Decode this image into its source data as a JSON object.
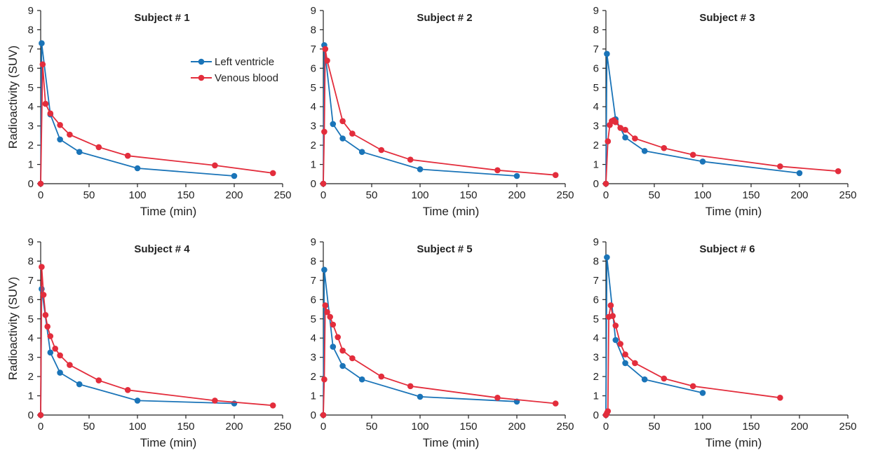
{
  "colors": {
    "left_ventricle": "#1a74b8",
    "venous_blood": "#e32d3c",
    "axis": "#222222"
  },
  "legend": {
    "left_ventricle": "Left ventricle",
    "venous_blood": "Venous blood"
  },
  "chart_data": [
    {
      "type": "line",
      "title": "Subject # 1",
      "xlabel": "Time (min)",
      "ylabel": "Radioactivity (SUV)",
      "xlim": [
        0,
        250
      ],
      "ylim": [
        0,
        9
      ],
      "xticks": [
        "0",
        "50",
        "100",
        "150",
        "200",
        "250"
      ],
      "yticks": [
        "0",
        "1",
        "2",
        "3",
        "4",
        "5",
        "6",
        "7",
        "8",
        "9"
      ],
      "grid": false,
      "legend_position": "top-right",
      "series": [
        {
          "name": "Left ventricle",
          "points": [
            [
              0,
              0
            ],
            [
              1,
              7.3
            ],
            [
              10,
              3.6
            ],
            [
              20,
              2.3
            ],
            [
              40,
              1.65
            ],
            [
              100,
              0.8
            ],
            [
              200,
              0.4
            ]
          ]
        },
        {
          "name": "Venous blood",
          "points": [
            [
              0,
              0
            ],
            [
              2,
              6.2
            ],
            [
              5,
              4.15
            ],
            [
              10,
              3.65
            ],
            [
              20,
              3.05
            ],
            [
              30,
              2.55
            ],
            [
              60,
              1.9
            ],
            [
              90,
              1.45
            ],
            [
              180,
              0.95
            ],
            [
              240,
              0.55
            ]
          ]
        }
      ]
    },
    {
      "type": "line",
      "title": "Subject # 2",
      "xlabel": "Time (min)",
      "ylabel": "",
      "xlim": [
        0,
        250
      ],
      "ylim": [
        0,
        9
      ],
      "xticks": [
        "0",
        "50",
        "100",
        "150",
        "200",
        "250"
      ],
      "yticks": [
        "0",
        "1",
        "2",
        "3",
        "4",
        "5",
        "6",
        "7",
        "8",
        "9"
      ],
      "grid": false,
      "series": [
        {
          "name": "Left ventricle",
          "points": [
            [
              0,
              0
            ],
            [
              1,
              7.2
            ],
            [
              10,
              3.1
            ],
            [
              20,
              2.35
            ],
            [
              40,
              1.65
            ],
            [
              100,
              0.75
            ],
            [
              200,
              0.4
            ]
          ]
        },
        {
          "name": "Venous blood",
          "points": [
            [
              0,
              0
            ],
            [
              1,
              2.7
            ],
            [
              2,
              7.0
            ],
            [
              4,
              6.4
            ],
            [
              20,
              3.25
            ],
            [
              30,
              2.6
            ],
            [
              60,
              1.75
            ],
            [
              90,
              1.25
            ],
            [
              180,
              0.7
            ],
            [
              240,
              0.45
            ]
          ]
        }
      ]
    },
    {
      "type": "line",
      "title": "Subject # 3",
      "xlabel": "Time (min)",
      "ylabel": "",
      "xlim": [
        0,
        250
      ],
      "ylim": [
        0,
        9
      ],
      "xticks": [
        "0",
        "50",
        "100",
        "150",
        "200",
        "250"
      ],
      "yticks": [
        "0",
        "1",
        "2",
        "3",
        "4",
        "5",
        "6",
        "7",
        "8",
        "9"
      ],
      "grid": false,
      "series": [
        {
          "name": "Left ventricle",
          "points": [
            [
              0,
              0
            ],
            [
              1,
              6.75
            ],
            [
              10,
              3.35
            ],
            [
              20,
              2.4
            ],
            [
              40,
              1.7
            ],
            [
              100,
              1.15
            ],
            [
              200,
              0.55
            ]
          ]
        },
        {
          "name": "Venous blood",
          "points": [
            [
              0,
              0
            ],
            [
              2,
              2.2
            ],
            [
              4,
              3.05
            ],
            [
              6,
              3.25
            ],
            [
              8,
              3.3
            ],
            [
              10,
              3.2
            ],
            [
              15,
              2.9
            ],
            [
              20,
              2.8
            ],
            [
              30,
              2.35
            ],
            [
              60,
              1.85
            ],
            [
              90,
              1.5
            ],
            [
              180,
              0.9
            ],
            [
              240,
              0.65
            ]
          ]
        }
      ]
    },
    {
      "type": "line",
      "title": "Subject # 4",
      "xlabel": "Time (min)",
      "ylabel": "Radioactivity (SUV)",
      "xlim": [
        0,
        250
      ],
      "ylim": [
        0,
        9
      ],
      "xticks": [
        "0",
        "50",
        "100",
        "150",
        "200",
        "250"
      ],
      "yticks": [
        "0",
        "1",
        "2",
        "3",
        "4",
        "5",
        "6",
        "7",
        "8",
        "9"
      ],
      "grid": false,
      "series": [
        {
          "name": "Left ventricle",
          "points": [
            [
              0,
              0
            ],
            [
              1,
              6.55
            ],
            [
              10,
              3.25
            ],
            [
              20,
              2.2
            ],
            [
              40,
              1.6
            ],
            [
              100,
              0.75
            ],
            [
              200,
              0.6
            ]
          ]
        },
        {
          "name": "Venous blood",
          "points": [
            [
              0,
              0
            ],
            [
              1,
              7.7
            ],
            [
              3,
              6.25
            ],
            [
              5,
              5.2
            ],
            [
              7,
              4.6
            ],
            [
              10,
              4.1
            ],
            [
              15,
              3.45
            ],
            [
              20,
              3.1
            ],
            [
              30,
              2.6
            ],
            [
              60,
              1.8
            ],
            [
              90,
              1.3
            ],
            [
              180,
              0.75
            ],
            [
              240,
              0.5
            ]
          ]
        }
      ]
    },
    {
      "type": "line",
      "title": "Subject # 5",
      "xlabel": "Time (min)",
      "ylabel": "",
      "xlim": [
        0,
        250
      ],
      "ylim": [
        0,
        9
      ],
      "xticks": [
        "0",
        "50",
        "100",
        "150",
        "200",
        "250"
      ],
      "yticks": [
        "0",
        "1",
        "2",
        "3",
        "4",
        "5",
        "6",
        "7",
        "8",
        "9"
      ],
      "grid": false,
      "series": [
        {
          "name": "Left ventricle",
          "points": [
            [
              0,
              0
            ],
            [
              1,
              7.55
            ],
            [
              10,
              3.55
            ],
            [
              20,
              2.55
            ],
            [
              40,
              1.85
            ],
            [
              100,
              0.95
            ],
            [
              200,
              0.7
            ]
          ]
        },
        {
          "name": "Venous blood",
          "points": [
            [
              0,
              0
            ],
            [
              1,
              1.85
            ],
            [
              2,
              5.7
            ],
            [
              4,
              5.35
            ],
            [
              7,
              5.1
            ],
            [
              10,
              4.7
            ],
            [
              15,
              4.05
            ],
            [
              20,
              3.35
            ],
            [
              30,
              2.95
            ],
            [
              60,
              2.0
            ],
            [
              90,
              1.5
            ],
            [
              180,
              0.9
            ],
            [
              240,
              0.6
            ]
          ]
        }
      ]
    },
    {
      "type": "line",
      "title": "Subject # 6",
      "xlabel": "Time (min)",
      "ylabel": "",
      "xlim": [
        0,
        250
      ],
      "ylim": [
        0,
        9
      ],
      "xticks": [
        "0",
        "50",
        "100",
        "150",
        "200",
        "250"
      ],
      "yticks": [
        "0",
        "1",
        "2",
        "3",
        "4",
        "5",
        "6",
        "7",
        "8",
        "9"
      ],
      "grid": false,
      "series": [
        {
          "name": "Left ventricle",
          "points": [
            [
              0,
              0
            ],
            [
              1,
              8.2
            ],
            [
              10,
              3.9
            ],
            [
              20,
              2.7
            ],
            [
              40,
              1.85
            ],
            [
              100,
              1.15
            ]
          ]
        },
        {
          "name": "Venous blood",
          "points": [
            [
              0,
              0
            ],
            [
              1,
              0.1
            ],
            [
              2,
              0.2
            ],
            [
              3,
              5.1
            ],
            [
              5,
              5.7
            ],
            [
              7,
              5.15
            ],
            [
              10,
              4.65
            ],
            [
              15,
              3.7
            ],
            [
              20,
              3.15
            ],
            [
              30,
              2.7
            ],
            [
              60,
              1.9
            ],
            [
              90,
              1.5
            ],
            [
              180,
              0.9
            ]
          ]
        }
      ]
    }
  ]
}
